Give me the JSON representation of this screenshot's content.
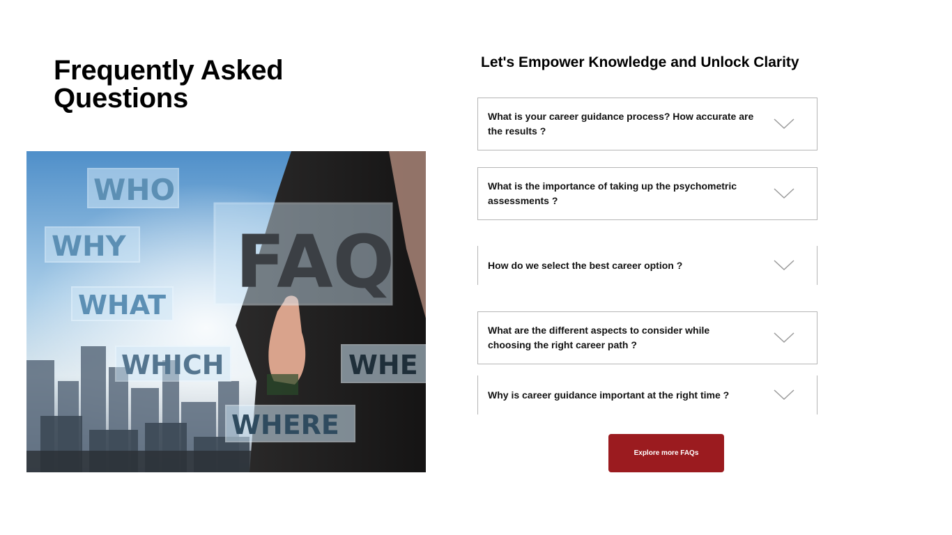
{
  "header": {
    "title": "Frequently Asked Questions",
    "subtitle": "Let's Empower Knowledge and Unlock Clarity"
  },
  "hero_image": {
    "words": [
      "WHO",
      "WHY",
      "WHAT",
      "WHICH",
      "WHERE",
      "WHEN",
      "FAQ"
    ],
    "visible_words": {
      "who": "WHO",
      "why": "WHY",
      "what": "WHAT",
      "which": "WHICH",
      "where": "WHERE",
      "when": "WHE",
      "faq": "FAQ"
    }
  },
  "faq": {
    "items": [
      {
        "question": "What is your career guidance process? How accurate are the results ?"
      },
      {
        "question": "What is the importance of taking up the psychometric assessments ?"
      },
      {
        "question": "How do we select the best career option ?"
      },
      {
        "question": "What are the different aspects to consider while choosing the right career path ?"
      },
      {
        "question": "Why is career guidance important at the right time ?"
      }
    ],
    "icon": "chevron-down-icon"
  },
  "cta": {
    "label": "Explore more FAQs"
  },
  "colors": {
    "accent": "#9b1b1f",
    "border": "#b5b5b5"
  }
}
